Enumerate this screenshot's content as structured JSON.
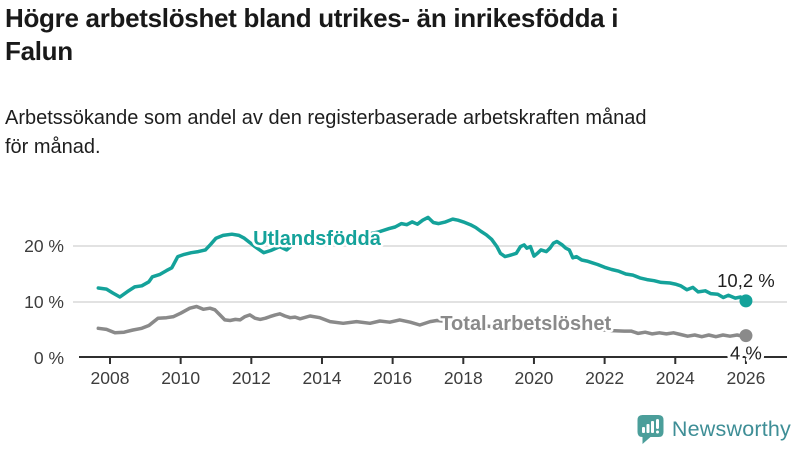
{
  "header": {
    "title_lines": [
      "Högre arbetslöshet bland utrikes- än inrikesfödda i",
      "Falun"
    ],
    "subtitle_lines": [
      "Arbetssökande som andel av den registerbaserade arbetskraften månad",
      "för månad."
    ]
  },
  "chart_data": {
    "type": "line",
    "title": "Högre arbetslöshet bland utrikes- än inrikesfödda i Falun",
    "subtitle": "Arbetssökande som andel av den registerbaserade arbetskraften månad för månad.",
    "grid": "horizontal",
    "xlim": [
      2007.3,
      2026.9
    ],
    "ylim": [
      0,
      27
    ],
    "x_axis": {
      "ticks": [
        2008,
        2010,
        2012,
        2014,
        2016,
        2018,
        2020,
        2022,
        2024,
        2026
      ]
    },
    "y_axis": {
      "unit": "%",
      "ticks": [
        {
          "value": 0,
          "label": "0 %"
        },
        {
          "value": 10,
          "label": "10 %"
        },
        {
          "value": 20,
          "label": "20 %"
        }
      ]
    },
    "colors": {
      "grid": "#d9d9d9",
      "axis": "#2f2f2f",
      "tick_label": "#3d3d3d",
      "value_label": "#1f1f1f"
    },
    "series": [
      {
        "name": "Utlandsfödda",
        "color": "#14a29a",
        "latest_value": 10.2,
        "latest_value_label": "10,2 %",
        "inline_label_anchor": {
          "x": 2012.05,
          "y": 20.2
        },
        "points": [
          [
            2007.67,
            12.5
          ],
          [
            2007.9,
            12.3
          ],
          [
            2008.08,
            11.6
          ],
          [
            2008.28,
            10.9
          ],
          [
            2008.5,
            11.9
          ],
          [
            2008.7,
            12.7
          ],
          [
            2008.9,
            12.9
          ],
          [
            2009.1,
            13.6
          ],
          [
            2009.2,
            14.5
          ],
          [
            2009.4,
            14.9
          ],
          [
            2009.6,
            15.6
          ],
          [
            2009.75,
            16.1
          ],
          [
            2009.92,
            18.1
          ],
          [
            2010.1,
            18.5
          ],
          [
            2010.3,
            18.8
          ],
          [
            2010.5,
            19.0
          ],
          [
            2010.7,
            19.3
          ],
          [
            2010.85,
            20.3
          ],
          [
            2011.0,
            21.4
          ],
          [
            2011.2,
            21.9
          ],
          [
            2011.45,
            22.1
          ],
          [
            2011.65,
            21.9
          ],
          [
            2011.8,
            21.4
          ],
          [
            2012.0,
            20.4
          ],
          [
            2012.1,
            19.9
          ],
          [
            2012.35,
            18.8
          ],
          [
            2012.55,
            19.2
          ],
          [
            2012.8,
            19.9
          ],
          [
            2013.0,
            19.3
          ],
          [
            2013.28,
            20.8
          ],
          [
            2013.6,
            20.2
          ],
          [
            2013.85,
            20.4
          ],
          [
            2014.1,
            20.7
          ],
          [
            2014.4,
            21.0
          ],
          [
            2014.7,
            21.3
          ],
          [
            2015.0,
            21.7
          ],
          [
            2015.3,
            22.1
          ],
          [
            2015.6,
            22.5
          ],
          [
            2015.9,
            23.1
          ],
          [
            2016.07,
            23.4
          ],
          [
            2016.25,
            24.0
          ],
          [
            2016.4,
            23.8
          ],
          [
            2016.55,
            24.3
          ],
          [
            2016.7,
            23.9
          ],
          [
            2016.85,
            24.6
          ],
          [
            2017.0,
            25.1
          ],
          [
            2017.15,
            24.2
          ],
          [
            2017.3,
            24.0
          ],
          [
            2017.5,
            24.3
          ],
          [
            2017.7,
            24.8
          ],
          [
            2017.85,
            24.6
          ],
          [
            2018.0,
            24.3
          ],
          [
            2018.2,
            23.8
          ],
          [
            2018.35,
            23.3
          ],
          [
            2018.5,
            22.6
          ],
          [
            2018.65,
            22.0
          ],
          [
            2018.8,
            21.2
          ],
          [
            2018.95,
            19.9
          ],
          [
            2019.05,
            18.7
          ],
          [
            2019.18,
            18.1
          ],
          [
            2019.35,
            18.4
          ],
          [
            2019.5,
            18.7
          ],
          [
            2019.62,
            19.9
          ],
          [
            2019.72,
            20.2
          ],
          [
            2019.8,
            19.6
          ],
          [
            2019.9,
            19.9
          ],
          [
            2020.0,
            18.2
          ],
          [
            2020.1,
            18.7
          ],
          [
            2020.2,
            19.3
          ],
          [
            2020.35,
            19.0
          ],
          [
            2020.45,
            19.6
          ],
          [
            2020.55,
            20.5
          ],
          [
            2020.65,
            20.8
          ],
          [
            2020.8,
            20.2
          ],
          [
            2020.9,
            19.6
          ],
          [
            2021.0,
            19.3
          ],
          [
            2021.1,
            17.9
          ],
          [
            2021.2,
            18.1
          ],
          [
            2021.35,
            17.5
          ],
          [
            2021.5,
            17.3
          ],
          [
            2021.65,
            17.0
          ],
          [
            2021.8,
            16.7
          ],
          [
            2022.0,
            16.2
          ],
          [
            2022.2,
            15.8
          ],
          [
            2022.4,
            15.5
          ],
          [
            2022.6,
            15.0
          ],
          [
            2022.8,
            14.8
          ],
          [
            2023.0,
            14.3
          ],
          [
            2023.2,
            14.0
          ],
          [
            2023.4,
            13.8
          ],
          [
            2023.6,
            13.5
          ],
          [
            2023.85,
            13.4
          ],
          [
            2024.0,
            13.2
          ],
          [
            2024.15,
            12.9
          ],
          [
            2024.33,
            12.2
          ],
          [
            2024.5,
            12.6
          ],
          [
            2024.65,
            11.8
          ],
          [
            2024.85,
            12.0
          ],
          [
            2025.0,
            11.5
          ],
          [
            2025.2,
            11.4
          ],
          [
            2025.36,
            10.8
          ],
          [
            2025.5,
            11.2
          ],
          [
            2025.7,
            10.7
          ],
          [
            2025.85,
            10.9
          ],
          [
            2026.0,
            10.2
          ]
        ]
      },
      {
        "name": "Total arbetslöshet",
        "color": "#8a8a8a",
        "latest_value": 4.0,
        "latest_value_label": "4 %",
        "inline_label_anchor": {
          "x": 2017.35,
          "y": 5.0
        },
        "points": [
          [
            2007.67,
            5.3
          ],
          [
            2007.9,
            5.1
          ],
          [
            2008.14,
            4.5
          ],
          [
            2008.4,
            4.6
          ],
          [
            2008.65,
            5.0
          ],
          [
            2008.9,
            5.3
          ],
          [
            2009.1,
            5.8
          ],
          [
            2009.36,
            7.1
          ],
          [
            2009.6,
            7.2
          ],
          [
            2009.8,
            7.4
          ],
          [
            2010.0,
            8.0
          ],
          [
            2010.26,
            8.9
          ],
          [
            2010.45,
            9.2
          ],
          [
            2010.64,
            8.7
          ],
          [
            2010.83,
            8.9
          ],
          [
            2010.97,
            8.6
          ],
          [
            2011.11,
            7.7
          ],
          [
            2011.25,
            6.8
          ],
          [
            2011.4,
            6.7
          ],
          [
            2011.55,
            6.9
          ],
          [
            2011.68,
            6.8
          ],
          [
            2011.82,
            7.4
          ],
          [
            2011.96,
            7.7
          ],
          [
            2012.1,
            7.1
          ],
          [
            2012.25,
            6.9
          ],
          [
            2012.4,
            7.1
          ],
          [
            2012.53,
            7.4
          ],
          [
            2012.68,
            7.7
          ],
          [
            2012.81,
            7.9
          ],
          [
            2012.95,
            7.5
          ],
          [
            2013.1,
            7.2
          ],
          [
            2013.24,
            7.3
          ],
          [
            2013.38,
            7.0
          ],
          [
            2013.66,
            7.5
          ],
          [
            2013.94,
            7.2
          ],
          [
            2014.23,
            6.5
          ],
          [
            2014.6,
            6.2
          ],
          [
            2014.98,
            6.5
          ],
          [
            2015.36,
            6.2
          ],
          [
            2015.64,
            6.6
          ],
          [
            2015.92,
            6.4
          ],
          [
            2016.2,
            6.8
          ],
          [
            2016.5,
            6.4
          ],
          [
            2016.77,
            5.9
          ],
          [
            2017.06,
            6.5
          ],
          [
            2017.25,
            6.7
          ],
          [
            2017.6,
            6.5
          ],
          [
            2018.0,
            6.2
          ],
          [
            2018.4,
            5.9
          ],
          [
            2018.8,
            5.6
          ],
          [
            2019.2,
            5.4
          ],
          [
            2019.6,
            5.2
          ],
          [
            2020.0,
            5.5
          ],
          [
            2020.4,
            6.0
          ],
          [
            2020.7,
            6.1
          ],
          [
            2021.0,
            5.8
          ],
          [
            2021.4,
            5.4
          ],
          [
            2021.8,
            5.1
          ],
          [
            2022.2,
            4.9
          ],
          [
            2022.55,
            4.8
          ],
          [
            2022.75,
            4.8
          ],
          [
            2022.95,
            4.4
          ],
          [
            2023.15,
            4.6
          ],
          [
            2023.35,
            4.3
          ],
          [
            2023.55,
            4.5
          ],
          [
            2023.75,
            4.3
          ],
          [
            2023.95,
            4.5
          ],
          [
            2024.15,
            4.2
          ],
          [
            2024.35,
            3.9
          ],
          [
            2024.55,
            4.1
          ],
          [
            2024.75,
            3.8
          ],
          [
            2024.95,
            4.1
          ],
          [
            2025.15,
            3.8
          ],
          [
            2025.35,
            4.1
          ],
          [
            2025.55,
            3.9
          ],
          [
            2025.75,
            4.1
          ],
          [
            2025.9,
            3.9
          ],
          [
            2026.0,
            4.0
          ]
        ]
      }
    ]
  },
  "footer": {
    "brand": "Newsworthy",
    "brand_color": "#3e8e96",
    "icon": "newsworthy-speech-bubble-chart-icon",
    "icon_color": "#4b9e9a"
  }
}
